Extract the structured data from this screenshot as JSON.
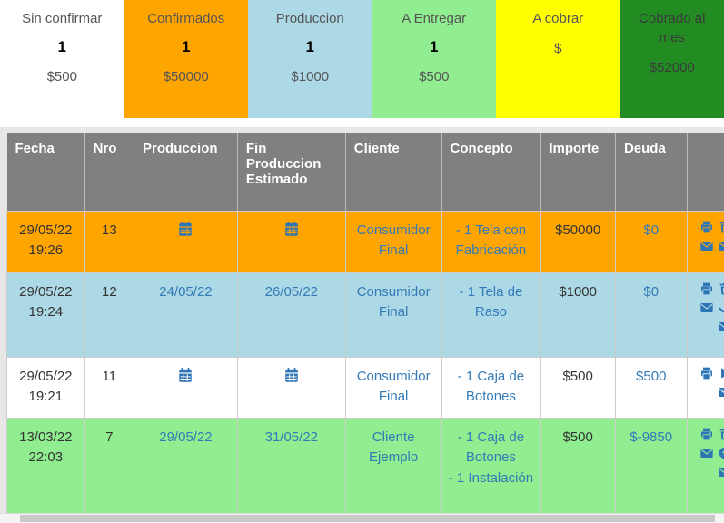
{
  "colors": {
    "link": "#337AB7",
    "icon": "#2E75B6",
    "header_bg": "#808080",
    "header_text": "#FFFFFF",
    "frame": "#E7E7E7",
    "cell_border": "#CCCCCC"
  },
  "cards": [
    {
      "title": "Sin confirmar",
      "count": "1",
      "amount": "$500",
      "bg": "#FFFFFF",
      "fg": "#555555"
    },
    {
      "title": "Confirmados",
      "count": "1",
      "amount": "$50000",
      "bg": "#FFA500",
      "fg": "#555555"
    },
    {
      "title": "Produccion",
      "count": "1",
      "amount": "$1000",
      "bg": "#ADD8E6",
      "fg": "#555555"
    },
    {
      "title": "A Entregar",
      "count": "1",
      "amount": "$500",
      "bg": "#90EE90",
      "fg": "#555555"
    },
    {
      "title": "A cobrar",
      "count": "",
      "amount": "$",
      "bg": "#FFFF00",
      "fg": "#555555"
    },
    {
      "title": "Cobrado al mes",
      "count": "",
      "amount": "$52000",
      "bg": "#228B22",
      "fg": "#3A3A3A"
    }
  ],
  "table": {
    "headers": [
      "Fecha",
      "Nro",
      "Produccion",
      "Fin Produccion Estimado",
      "Cliente",
      "Concepto",
      "Importe",
      "Deuda",
      ""
    ],
    "rows": [
      {
        "bg": "#FFA500",
        "fecha": "29/05/22 19:26",
        "nro": "13",
        "produccion": {
          "type": "icon",
          "name": "calendar"
        },
        "fin": {
          "type": "icon",
          "name": "calendar"
        },
        "cliente": "Consumidor Final",
        "concepto": [
          "- 1 Tela con Fabricación"
        ],
        "importe": "$50000",
        "deuda": "$0",
        "actions": [
          "print",
          "trash",
          "envelope",
          "envelope"
        ]
      },
      {
        "bg": "#ADD8E6",
        "fecha": "29/05/22 19:24",
        "nro": "12",
        "produccion": {
          "type": "link",
          "text": "24/05/22"
        },
        "fin": {
          "type": "link",
          "text": "26/05/22"
        },
        "cliente": "Consumidor Final",
        "concepto": [
          "- 1 Tela de Raso"
        ],
        "importe": "$1000",
        "deuda": "$0",
        "actions": [
          "print",
          "trash",
          "envelope",
          "check",
          "envelope"
        ]
      },
      {
        "bg": "#FFFFFF",
        "fecha": "29/05/22 19:21",
        "nro": "11",
        "produccion": {
          "type": "icon",
          "name": "calendar"
        },
        "fin": {
          "type": "icon",
          "name": "calendar"
        },
        "cliente": "Consumidor Final",
        "concepto": [
          "- 1 Caja de Botones"
        ],
        "importe": "$500",
        "deuda": "$500",
        "actions": [
          "print",
          "play",
          "envelope"
        ]
      },
      {
        "bg": "#90EE90",
        "fecha": "13/03/22 22:03",
        "nro": "7",
        "produccion": {
          "type": "link",
          "text": "29/05/22"
        },
        "fin": {
          "type": "link",
          "text": "31/05/22"
        },
        "cliente": "Cliente Ejemplo",
        "concepto": [
          "- 1 Caja de Botones",
          "- 1 Instalación"
        ],
        "importe": "$500",
        "deuda": "$-9850",
        "actions": [
          "print",
          "trash",
          "envelope",
          "upload",
          "envelope"
        ]
      }
    ]
  },
  "scrollbar": {
    "orientation": "horizontal"
  }
}
